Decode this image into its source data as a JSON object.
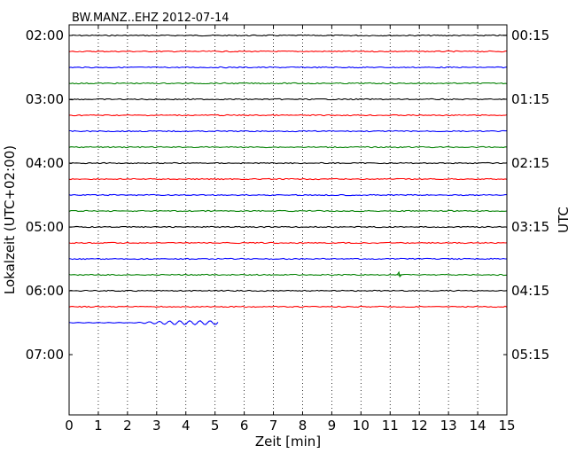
{
  "chart_data": {
    "type": "line",
    "title": "BW.MANZ..EHZ 2012-07-14",
    "xlabel": "Zeit  [min]",
    "ylabel_left": "Lokalzeit (UTC+02:00)",
    "ylabel_right": "UTC",
    "xlim": [
      0,
      15
    ],
    "x_ticks": [
      "0",
      "1",
      "2",
      "3",
      "4",
      "5",
      "6",
      "7",
      "8",
      "9",
      "10",
      "11",
      "12",
      "13",
      "14",
      "15"
    ],
    "y_ticks_left": [
      "02:00",
      "03:00",
      "04:00",
      "05:00",
      "06:00",
      "07:00"
    ],
    "y_ticks_right": [
      "00:15",
      "01:15",
      "02:15",
      "03:15",
      "04:15",
      "05:15"
    ],
    "grid_x": true,
    "trace_interval_min": 15,
    "trace_colors": [
      "#000000",
      "#ff0000",
      "#0000ff",
      "#008000"
    ],
    "traces": [
      {
        "local_start": "02:00",
        "duration_min": 15
      },
      {
        "local_start": "02:15",
        "duration_min": 15
      },
      {
        "local_start": "02:30",
        "duration_min": 15
      },
      {
        "local_start": "02:45",
        "duration_min": 15
      },
      {
        "local_start": "03:00",
        "duration_min": 15
      },
      {
        "local_start": "03:15",
        "duration_min": 15
      },
      {
        "local_start": "03:30",
        "duration_min": 15
      },
      {
        "local_start": "03:45",
        "duration_min": 15
      },
      {
        "local_start": "04:00",
        "duration_min": 15
      },
      {
        "local_start": "04:15",
        "duration_min": 15
      },
      {
        "local_start": "04:30",
        "duration_min": 15
      },
      {
        "local_start": "04:45",
        "duration_min": 15
      },
      {
        "local_start": "05:00",
        "duration_min": 15
      },
      {
        "local_start": "05:15",
        "duration_min": 15
      },
      {
        "local_start": "05:30",
        "duration_min": 15
      },
      {
        "local_start": "05:45",
        "duration_min": 15
      },
      {
        "local_start": "06:00",
        "duration_min": 15
      },
      {
        "local_start": "06:15",
        "duration_min": 15
      },
      {
        "local_start": "06:30",
        "duration_min": 5.15
      }
    ]
  }
}
